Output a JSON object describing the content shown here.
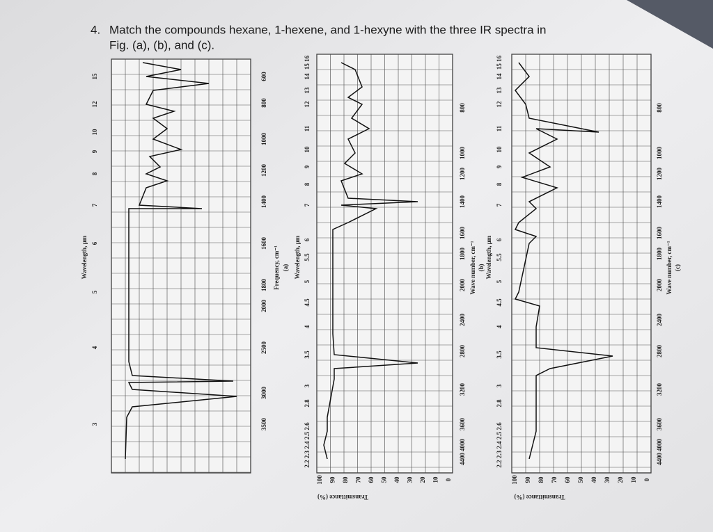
{
  "question": {
    "number": "4.",
    "lines": [
      "Match the compounds hexane, 1-hexene, and 1-hexyne with the three IR spectra in",
      "Fig. (a), (b), and (c)."
    ]
  },
  "spectra": [
    {
      "wavelength_title": "Wavelength, μm",
      "wavelength_ticks": [
        "3",
        "4",
        "5",
        "6",
        "7",
        "8",
        "9",
        "10",
        "12",
        "15"
      ],
      "frequency_title": "Frequency, cm⁻¹",
      "frequency_ticks": [
        "3500",
        "3000",
        "2500",
        "2000",
        "1800",
        "1600",
        "1400",
        "1200",
        "1000",
        "800",
        "600"
      ],
      "caption": "(a)"
    },
    {
      "wavelength_title": "Wavelength, μm",
      "wavelength_ticks": [
        "2.2 2.3 2.4 2.5 2.6",
        "2.8",
        "3",
        "3.5",
        "4",
        "4.5",
        "5",
        "5.5",
        "6",
        "7",
        "8",
        "9",
        "10",
        "11",
        "12",
        "13",
        "14",
        "15 16"
      ],
      "frequency_title": "Wave number, cm⁻¹",
      "frequency_ticks": [
        "4400",
        "4000",
        "3600",
        "3200",
        "2800",
        "2400",
        "2000",
        "1800",
        "1600",
        "1400",
        "1200",
        "1000",
        "800"
      ],
      "caption": "(b)",
      "transmittance_title": "Transmittance (%)",
      "transmittance_ticks": [
        "100",
        "90",
        "80",
        "70",
        "60",
        "50",
        "40",
        "30",
        "20",
        "10",
        "0"
      ]
    },
    {
      "wavelength_title": "Wavelength, μm",
      "wavelength_ticks": [
        "2.2 2.3 2.4 2.5 2.6",
        "2.8",
        "3",
        "3.5",
        "4",
        "4.5",
        "5",
        "5.5",
        "6",
        "7",
        "8",
        "9",
        "10",
        "11",
        "12",
        "13",
        "14",
        "15 16"
      ],
      "frequency_title": "Wave number, cm⁻¹",
      "frequency_ticks": [
        "4400",
        "4000",
        "3600",
        "3200",
        "2800",
        "2400",
        "2000",
        "1800",
        "1600",
        "1400",
        "1200",
        "1000",
        "800"
      ],
      "caption": "(c)",
      "transmittance_title": "Transmittance (%)",
      "transmittance_ticks": [
        "100",
        "90",
        "80",
        "70",
        "60",
        "50",
        "40",
        "30",
        "20",
        "10",
        "0"
      ]
    }
  ]
}
